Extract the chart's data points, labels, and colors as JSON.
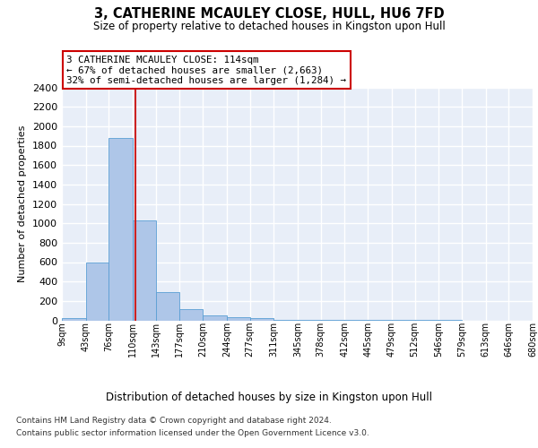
{
  "title": "3, CATHERINE MCAULEY CLOSE, HULL, HU6 7FD",
  "subtitle": "Size of property relative to detached houses in Kingston upon Hull",
  "xlabel": "Distribution of detached houses by size in Kingston upon Hull",
  "ylabel": "Number of detached properties",
  "bar_values": [
    20,
    600,
    1880,
    1030,
    290,
    115,
    50,
    30,
    20,
    5,
    3,
    2,
    2,
    1,
    1,
    1,
    1,
    0,
    0,
    0
  ],
  "bin_edges": [
    9,
    43,
    76,
    110,
    143,
    177,
    210,
    244,
    277,
    311,
    345,
    378,
    412,
    445,
    479,
    512,
    546,
    579,
    613,
    646,
    680
  ],
  "tick_labels": [
    "9sqm",
    "43sqm",
    "76sqm",
    "110sqm",
    "143sqm",
    "177sqm",
    "210sqm",
    "244sqm",
    "277sqm",
    "311sqm",
    "345sqm",
    "378sqm",
    "412sqm",
    "445sqm",
    "479sqm",
    "512sqm",
    "546sqm",
    "579sqm",
    "613sqm",
    "646sqm",
    "680sqm"
  ],
  "bar_color": "#aec6e8",
  "bar_edgecolor": "#5a9fd4",
  "vline_x": 114,
  "vline_color": "#cc2222",
  "annotation_text": "3 CATHERINE MCAULEY CLOSE: 114sqm\n← 67% of detached houses are smaller (2,663)\n32% of semi-detached houses are larger (1,284) →",
  "annotation_box_edgecolor": "#cc0000",
  "annotation_box_facecolor": "#ffffff",
  "ylim": [
    0,
    2400
  ],
  "yticks": [
    0,
    200,
    400,
    600,
    800,
    1000,
    1200,
    1400,
    1600,
    1800,
    2000,
    2200,
    2400
  ],
  "background_color": "#e8eef8",
  "grid_color": "#ffffff",
  "footer_line1": "Contains HM Land Registry data © Crown copyright and database right 2024.",
  "footer_line2": "Contains public sector information licensed under the Open Government Licence v3.0."
}
